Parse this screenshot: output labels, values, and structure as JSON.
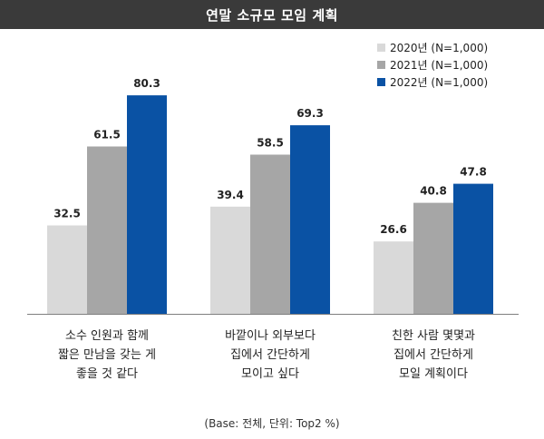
{
  "chart_data": {
    "type": "bar",
    "title": "연말 소규모 모임 계획",
    "categories": [
      [
        "소수 인원과 함께",
        "짧은 만남을 갖는 게",
        "좋을 것 같다"
      ],
      [
        "바깥이나 외부보다",
        "집에서 간단하게",
        "모이고 싶다"
      ],
      [
        "친한 사람 몇몇과",
        "집에서 간단하게",
        "모일 계획이다"
      ]
    ],
    "series": [
      {
        "name": "2020년 (N=1,000)",
        "color": "#d9d9d9",
        "values": [
          32.5,
          39.4,
          26.6
        ]
      },
      {
        "name": "2021년 (N=1,000)",
        "color": "#a6a6a6",
        "values": [
          61.5,
          58.5,
          40.8
        ]
      },
      {
        "name": "2022년 (N=1,000)",
        "color": "#0a52a4",
        "values": [
          80.3,
          69.3,
          47.8
        ]
      }
    ],
    "ylim": [
      0,
      100
    ],
    "grid": false,
    "legend_position": "top-right",
    "footnote": "(Base: 전체, 단위: Top2 %)"
  }
}
